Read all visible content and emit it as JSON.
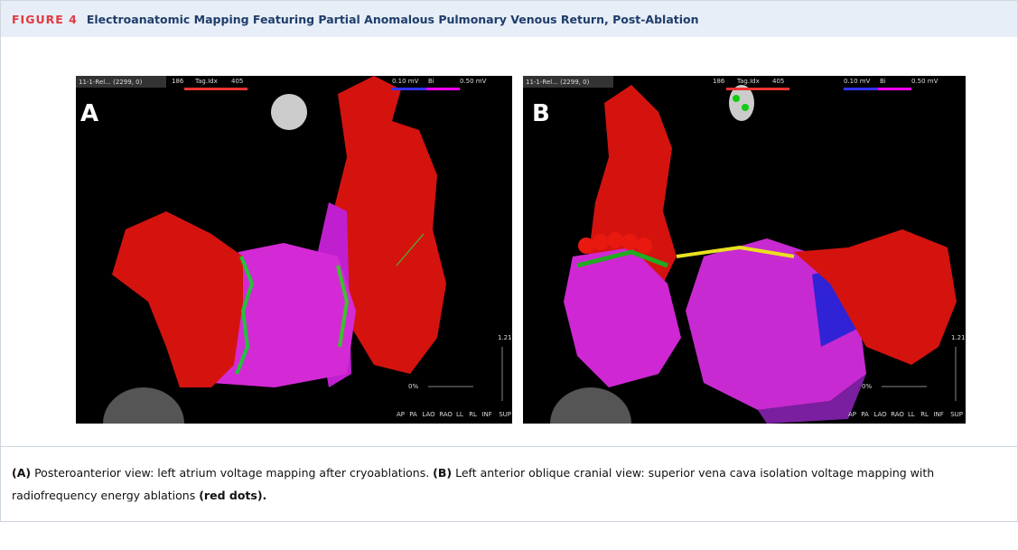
{
  "header": {
    "figure_label": "FIGURE 4",
    "title": "Electroanatomic Mapping Featuring Partial Anomalous Pulmonary Venous Return, Post-Ablation"
  },
  "panels": [
    {
      "label": "A",
      "toolbar": "11-1-Rel... (2299, 0)",
      "tag_min": "186",
      "tag_name": "Tag.Idx",
      "tag_max": "405",
      "voltage_min": "0.10 mV",
      "voltage_name": "Bi",
      "voltage_max": "0.50 mV",
      "zoom": "1.21",
      "opacity": "0%",
      "views": [
        "AP",
        "PA",
        "LAO",
        "RAO",
        "LL",
        "RL",
        "INF",
        "SUP"
      ]
    },
    {
      "label": "B",
      "toolbar": "11-1-Rel... (2299, 0)",
      "tag_min": "186",
      "tag_name": "Tag.Idx",
      "tag_max": "405",
      "voltage_min": "0.10 mV",
      "voltage_name": "Bi",
      "voltage_max": "0.50 mV",
      "zoom": "1.21",
      "opacity": "0%",
      "views": [
        "AP",
        "PA",
        "LAO",
        "RAO",
        "LL",
        "RL",
        "INF",
        "SUP"
      ]
    }
  ],
  "caption": {
    "segments": [
      {
        "text": "(A)",
        "bold": true
      },
      {
        "text": " Posteroanterior view: left atrium voltage mapping after cryoablations. ",
        "bold": false
      },
      {
        "text": "(B)",
        "bold": true
      },
      {
        "text": " Left anterior oblique cranial view: superior vena cava isolation voltage mapping with radiofrequency energy ablations ",
        "bold": false
      },
      {
        "text": "(red dots).",
        "bold": true
      }
    ]
  }
}
